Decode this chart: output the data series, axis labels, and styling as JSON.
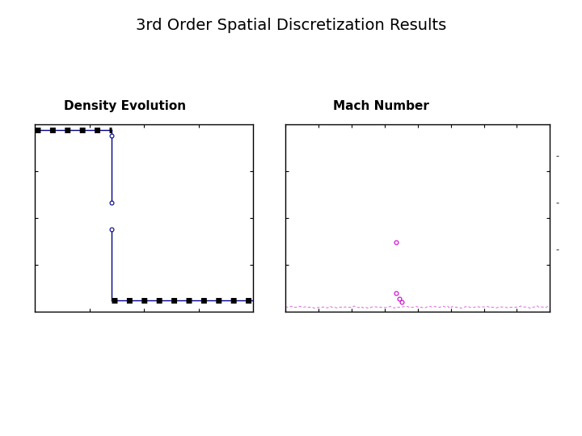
{
  "title": "3rd Order Spatial Discretization Results",
  "title_fontsize": 14,
  "left_label": "Density Evolution",
  "right_label": "Mach Number",
  "label_fontsize": 11,
  "left_xlim": [
    0,
    1
  ],
  "left_ylim": [
    0,
    1
  ],
  "right_xlim": [
    0,
    1
  ],
  "right_ylim": [
    0,
    1
  ],
  "bg_color": "#ffffff",
  "left_line_color": "#00008B",
  "right_line_color": "#CC00CC"
}
